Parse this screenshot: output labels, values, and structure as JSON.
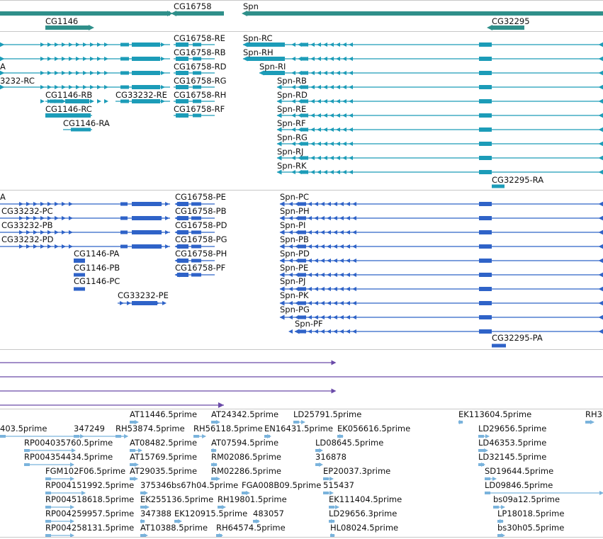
{
  "colors": {
    "gene": "#2f8f8a",
    "transcript": "#1c9cb8",
    "protein": "#2f63c8",
    "purple": "#6a4aa8",
    "est": "#7ab3dc",
    "separator": "#c8c8c8"
  },
  "gene_track": {
    "labels": [
      "CG1146",
      "CG16758",
      "Spn",
      "CG32295"
    ]
  },
  "transcript_track": {
    "labels": [
      "A",
      "CG16758-RE",
      "Spn-RC",
      "CG16758-RB",
      "Spn-RH",
      "CG16758-RD",
      "Spn-RI",
      "3232-RC",
      "CG16758-RG",
      "Spn-RB",
      "CG1146-RB",
      "CG33232-RE",
      "CG16758-RH",
      "Spn-RD",
      "CG1146-RC",
      "CG16758-RF",
      "Spn-RE",
      "CG1146-RA",
      "Spn-RF",
      "Spn-RG",
      "Spn-RJ",
      "Spn-RK",
      "CG32295-RA"
    ]
  },
  "protein_track": {
    "labels": [
      "A",
      "CG16758-PE",
      "Spn-PC",
      "CG33232-PC",
      "CG16758-PB",
      "Spn-PH",
      "CG33232-PB",
      "CG16758-PD",
      "Spn-PI",
      "CG33232-PD",
      "CG16758-PG",
      "Spn-PB",
      "CG1146-PA",
      "CG16758-PH",
      "Spn-PD",
      "CG1146-PB",
      "CG16758-PF",
      "Spn-PE",
      "CG1146-PC",
      "Spn-PJ",
      "CG33232-PE",
      "Spn-PK",
      "Spn-PG",
      "Spn-PF",
      "CG32295-PA"
    ]
  },
  "est_track": {
    "labels": [
      "AT11446.5prime",
      "AT24342.5prime",
      "LD25791.5prime",
      "EK113604.5prime",
      "RH3",
      "403.5prime",
      "347249",
      "RH53874.5prime",
      "RH56118.5prime",
      "EN16431.5prime",
      "EK056616.5prime",
      "LD29656.5prime",
      "RP004035760.5prime",
      "AT08482.5prime",
      "AT07594.5prime",
      "LD08645.5prime",
      "LD46353.5prime",
      "RP004354434.5prime",
      "AT15769.5prime",
      "RM02086.5prime",
      "316878",
      "LD32145.5prime",
      "FGM102F06.5prime",
      "AT29035.5prime",
      "RM02286.5prime",
      "EP20037.3prime",
      "SD19644.5prime",
      "RP004151992.5prime",
      "375346bs67h04.5prime",
      "FGA008B09.5prime",
      "515437",
      "LD09846.5prime",
      "RP004518618.5prime",
      "EK255136.5prime",
      "RH19801.5prime",
      "EK111404.5prime",
      "bs09a12.5prime",
      "RP004259957.5prime",
      "347388",
      "EK120915.5prime",
      "483057",
      "LD29656.3prime",
      "LP18018.5prime",
      "RP004258131.5prime",
      "AT10388.5prime",
      "RH64574.5prime",
      "HL08024.5prime",
      "bs30h05.5prime"
    ]
  }
}
